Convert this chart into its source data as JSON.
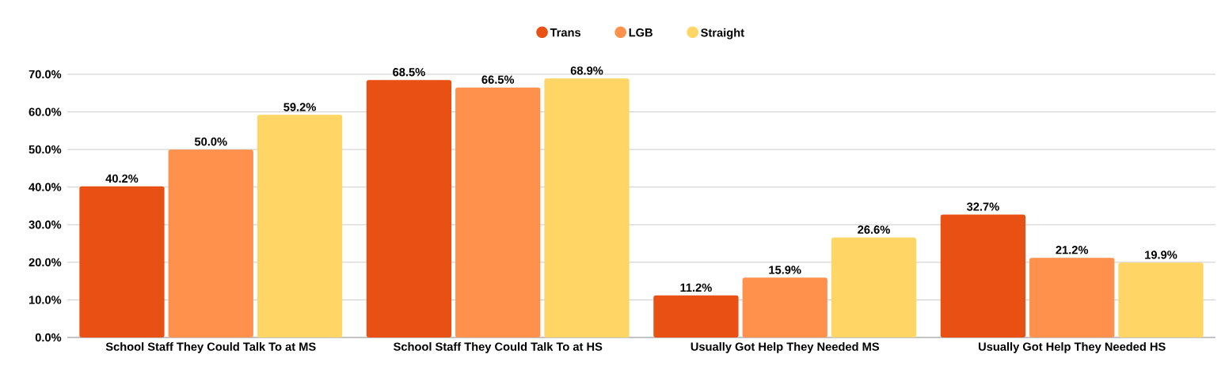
{
  "chart_data": {
    "type": "bar",
    "categories": [
      "School Staff They Could Talk To at MS",
      "School Staff They Could Talk To at HS",
      "Usually Got Help They Needed MS",
      "Usually Got Help They Needed HS"
    ],
    "series": [
      {
        "name": "Trans",
        "color": "#e95014",
        "values": [
          40.2,
          68.5,
          11.2,
          32.7
        ],
        "value_labels": [
          "40.2%",
          "68.5%",
          "11.2%",
          "32.7%"
        ]
      },
      {
        "name": "LGB",
        "color": "#ff914d",
        "values": [
          50.0,
          66.5,
          15.9,
          21.2
        ],
        "value_labels": [
          "50.0%",
          "66.5%",
          "15.9%",
          "21.2%"
        ]
      },
      {
        "name": "Straight",
        "color": "#ffd666",
        "values": [
          59.2,
          68.9,
          26.6,
          19.9
        ],
        "value_labels": [
          "59.2%",
          "68.9%",
          "26.6%",
          "19.9%"
        ]
      }
    ],
    "ylim": [
      0,
      70
    ],
    "yticks": [
      {
        "value": 0,
        "label": "0.0%"
      },
      {
        "value": 10,
        "label": "10.0%"
      },
      {
        "value": 20,
        "label": "20.0%"
      },
      {
        "value": 30,
        "label": "30.0%"
      },
      {
        "value": 40,
        "label": "40.0%"
      },
      {
        "value": 50,
        "label": "50.0%"
      },
      {
        "value": 60,
        "label": "60.0%"
      },
      {
        "value": 70,
        "label": "70.0%"
      }
    ],
    "grid": "y",
    "legend": "top"
  }
}
